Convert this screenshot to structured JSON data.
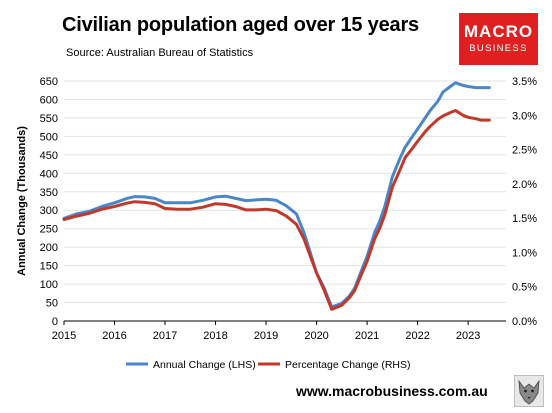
{
  "header": {
    "title": "Civilian population aged over 15 years",
    "source": "Source: Australian Bureau of Statistics",
    "logo_line1": "MACRO",
    "logo_line2": "BUSINESS",
    "website": "www.macrobusiness.com.au"
  },
  "colors": {
    "lhs": "#4a86c8",
    "rhs": "#c0392b",
    "logo_bg": "#e02020"
  },
  "chart_data": {
    "type": "line",
    "title": "Civilian population aged over 15 years",
    "ylabel": "Annual Change (Thousands)",
    "ylim": [
      0,
      650
    ],
    "y2lim": [
      0,
      3.5
    ],
    "y_ticks": [
      "0",
      "50",
      "100",
      "150",
      "200",
      "250",
      "300",
      "350",
      "400",
      "450",
      "500",
      "550",
      "600",
      "650"
    ],
    "y2_ticks": [
      "0.0%",
      "0.5%",
      "1.0%",
      "1.5%",
      "2.0%",
      "2.5%",
      "3.0%",
      "3.5%"
    ],
    "x_ticks": [
      "2015",
      "2016",
      "2017",
      "2018",
      "2019",
      "2020",
      "2021",
      "2022",
      "2023"
    ],
    "grid": true,
    "legend_position": "bottom",
    "series": [
      {
        "name": "Annual Change (LHS)",
        "axis": "left",
        "x": [
          2015.0,
          2015.25,
          2015.5,
          2015.75,
          2016.0,
          2016.25,
          2016.4,
          2016.6,
          2016.8,
          2017.0,
          2017.25,
          2017.5,
          2017.75,
          2018.0,
          2018.2,
          2018.4,
          2018.6,
          2018.8,
          2019.0,
          2019.2,
          2019.4,
          2019.6,
          2019.75,
          2019.9,
          2020.0,
          2020.15,
          2020.3,
          2020.5,
          2020.65,
          2020.75,
          2020.9,
          2021.0,
          2021.15,
          2021.25,
          2021.35,
          2021.5,
          2021.65,
          2021.75,
          2021.9,
          2022.0,
          2022.15,
          2022.25,
          2022.4,
          2022.5,
          2022.65,
          2022.75,
          2022.9,
          2023.0,
          2023.15,
          2023.25,
          2023.42
        ],
        "values": [
          278,
          290,
          297,
          310,
          320,
          332,
          337,
          336,
          332,
          320,
          320,
          320,
          327,
          336,
          338,
          332,
          326,
          328,
          330,
          327,
          312,
          290,
          240,
          175,
          130,
          90,
          38,
          48,
          68,
          88,
          140,
          175,
          240,
          270,
          310,
          390,
          440,
          470,
          500,
          520,
          550,
          570,
          595,
          620,
          635,
          645,
          638,
          635,
          632,
          632,
          632
        ]
      },
      {
        "name": "Percentage Change (RHS)",
        "axis": "right",
        "x": [
          2015.0,
          2015.25,
          2015.5,
          2015.75,
          2016.0,
          2016.25,
          2016.4,
          2016.6,
          2016.8,
          2017.0,
          2017.25,
          2017.5,
          2017.75,
          2018.0,
          2018.2,
          2018.4,
          2018.6,
          2018.8,
          2019.0,
          2019.2,
          2019.4,
          2019.6,
          2019.75,
          2019.9,
          2020.0,
          2020.15,
          2020.3,
          2020.5,
          2020.65,
          2020.75,
          2020.9,
          2021.0,
          2021.15,
          2021.25,
          2021.35,
          2021.5,
          2021.65,
          2021.75,
          2021.9,
          2022.0,
          2022.15,
          2022.25,
          2022.4,
          2022.5,
          2022.65,
          2022.75,
          2022.9,
          2023.0,
          2023.15,
          2023.25,
          2023.42
        ],
        "values": [
          1.48,
          1.53,
          1.57,
          1.63,
          1.67,
          1.72,
          1.74,
          1.73,
          1.71,
          1.64,
          1.63,
          1.63,
          1.66,
          1.71,
          1.7,
          1.67,
          1.62,
          1.62,
          1.63,
          1.61,
          1.53,
          1.41,
          1.2,
          0.9,
          0.7,
          0.45,
          0.17,
          0.23,
          0.34,
          0.44,
          0.7,
          0.87,
          1.2,
          1.35,
          1.55,
          1.95,
          2.2,
          2.38,
          2.52,
          2.62,
          2.76,
          2.84,
          2.94,
          2.99,
          3.04,
          3.07,
          3.0,
          2.97,
          2.95,
          2.93,
          2.93
        ]
      }
    ]
  }
}
